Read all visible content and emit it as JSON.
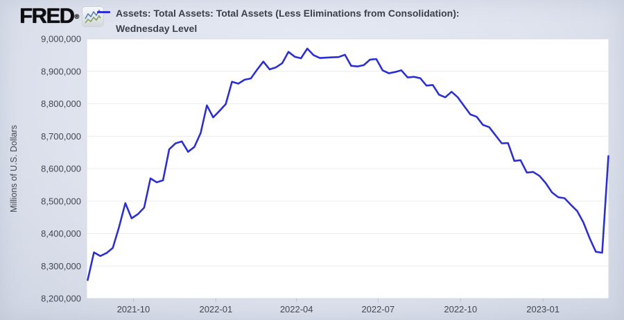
{
  "header": {
    "logo_text": "FRED",
    "registered_mark": "®",
    "logo_icon": "mini-line-chart-icon",
    "title_line1": "Assets: Total Assets: Total Assets (Less Eliminations from Consolidation):",
    "title_line2": "Wednesday Level"
  },
  "colors": {
    "line": "#2b2fd0",
    "background": "#dfe3ee",
    "plot_background": "#ffffff",
    "gridline": "#ececec",
    "plot_border": "#d7dbe4",
    "tick_mark": "#b9c0cc",
    "tick_text": "#44474f",
    "title_text": "#3b3f49",
    "logo_icon_blue": "#5b7fb4",
    "logo_icon_green": "#84a55e"
  },
  "chart_data": {
    "type": "line",
    "title": "Assets: Total Assets: Total Assets (Less Eliminations from Consolidation): Wednesday Level",
    "xlabel": "",
    "ylabel": "Millions of U.S. Dollars",
    "ylim": [
      8200000,
      9000000
    ],
    "y_tick_step": 100000,
    "y_tick_labels": [
      "8,200,000",
      "8,300,000",
      "8,400,000",
      "8,500,000",
      "8,600,000",
      "8,700,000",
      "8,800,000",
      "8,900,000",
      "9,000,000"
    ],
    "x_tick_labels": [
      "2021-10",
      "2022-01",
      "2022-04",
      "2022-07",
      "2022-10",
      "2023-01"
    ],
    "x_tick_dates": [
      "2021-10-01",
      "2022-01-01",
      "2022-04-01",
      "2022-07-01",
      "2022-10-01",
      "2023-01-01"
    ],
    "grid": true,
    "legend_position": "top",
    "series": [
      {
        "name": "Assets: Total Assets: Total Assets (Less Eliminations from Consolidation): Wednesday Level",
        "frequency": "weekly",
        "dates": [
          "2021-08-11",
          "2021-08-18",
          "2021-08-25",
          "2021-09-01",
          "2021-09-08",
          "2021-09-15",
          "2021-09-22",
          "2021-09-29",
          "2021-10-06",
          "2021-10-13",
          "2021-10-20",
          "2021-10-27",
          "2021-11-03",
          "2021-11-10",
          "2021-11-17",
          "2021-11-24",
          "2021-12-01",
          "2021-12-08",
          "2021-12-15",
          "2021-12-22",
          "2021-12-29",
          "2022-01-05",
          "2022-01-12",
          "2022-01-19",
          "2022-01-26",
          "2022-02-02",
          "2022-02-09",
          "2022-02-16",
          "2022-02-23",
          "2022-03-02",
          "2022-03-09",
          "2022-03-16",
          "2022-03-23",
          "2022-03-30",
          "2022-04-06",
          "2022-04-13",
          "2022-04-20",
          "2022-04-27",
          "2022-05-04",
          "2022-05-11",
          "2022-05-18",
          "2022-05-25",
          "2022-06-01",
          "2022-06-08",
          "2022-06-15",
          "2022-06-22",
          "2022-06-29",
          "2022-07-06",
          "2022-07-13",
          "2022-07-20",
          "2022-07-27",
          "2022-08-03",
          "2022-08-10",
          "2022-08-17",
          "2022-08-24",
          "2022-08-31",
          "2022-09-07",
          "2022-09-14",
          "2022-09-21",
          "2022-09-28",
          "2022-10-05",
          "2022-10-12",
          "2022-10-19",
          "2022-10-26",
          "2022-11-02",
          "2022-11-09",
          "2022-11-16",
          "2022-11-23",
          "2022-11-30",
          "2022-12-07",
          "2022-12-14",
          "2022-12-21",
          "2022-12-28",
          "2023-01-04",
          "2023-01-11",
          "2023-01-18",
          "2023-01-25",
          "2023-02-01",
          "2023-02-08",
          "2023-02-15",
          "2023-02-22",
          "2023-03-01",
          "2023-03-08",
          "2023-03-15"
        ],
        "values": [
          8257000,
          8342000,
          8331000,
          8340000,
          8356000,
          8420000,
          8494000,
          8447000,
          8460000,
          8480000,
          8570000,
          8558000,
          8564000,
          8660000,
          8678000,
          8684000,
          8652000,
          8667000,
          8710000,
          8795000,
          8758000,
          8778000,
          8799000,
          8868000,
          8862000,
          8874000,
          8878000,
          8905000,
          8930000,
          8906000,
          8912000,
          8925000,
          8960000,
          8945000,
          8940000,
          8970000,
          8950000,
          8941000,
          8942000,
          8943000,
          8944000,
          8951000,
          8917000,
          8915000,
          8919000,
          8936000,
          8938000,
          8903000,
          8894000,
          8898000,
          8903000,
          8881000,
          8883000,
          8879000,
          8856000,
          8858000,
          8828000,
          8820000,
          8837000,
          8820000,
          8793000,
          8767000,
          8760000,
          8735000,
          8728000,
          8703000,
          8678000,
          8679000,
          8624000,
          8626000,
          8588000,
          8590000,
          8578000,
          8556000,
          8527000,
          8512000,
          8509000,
          8489000,
          8470000,
          8435000,
          8386000,
          8344000,
          8341000,
          8639000
        ]
      }
    ]
  }
}
